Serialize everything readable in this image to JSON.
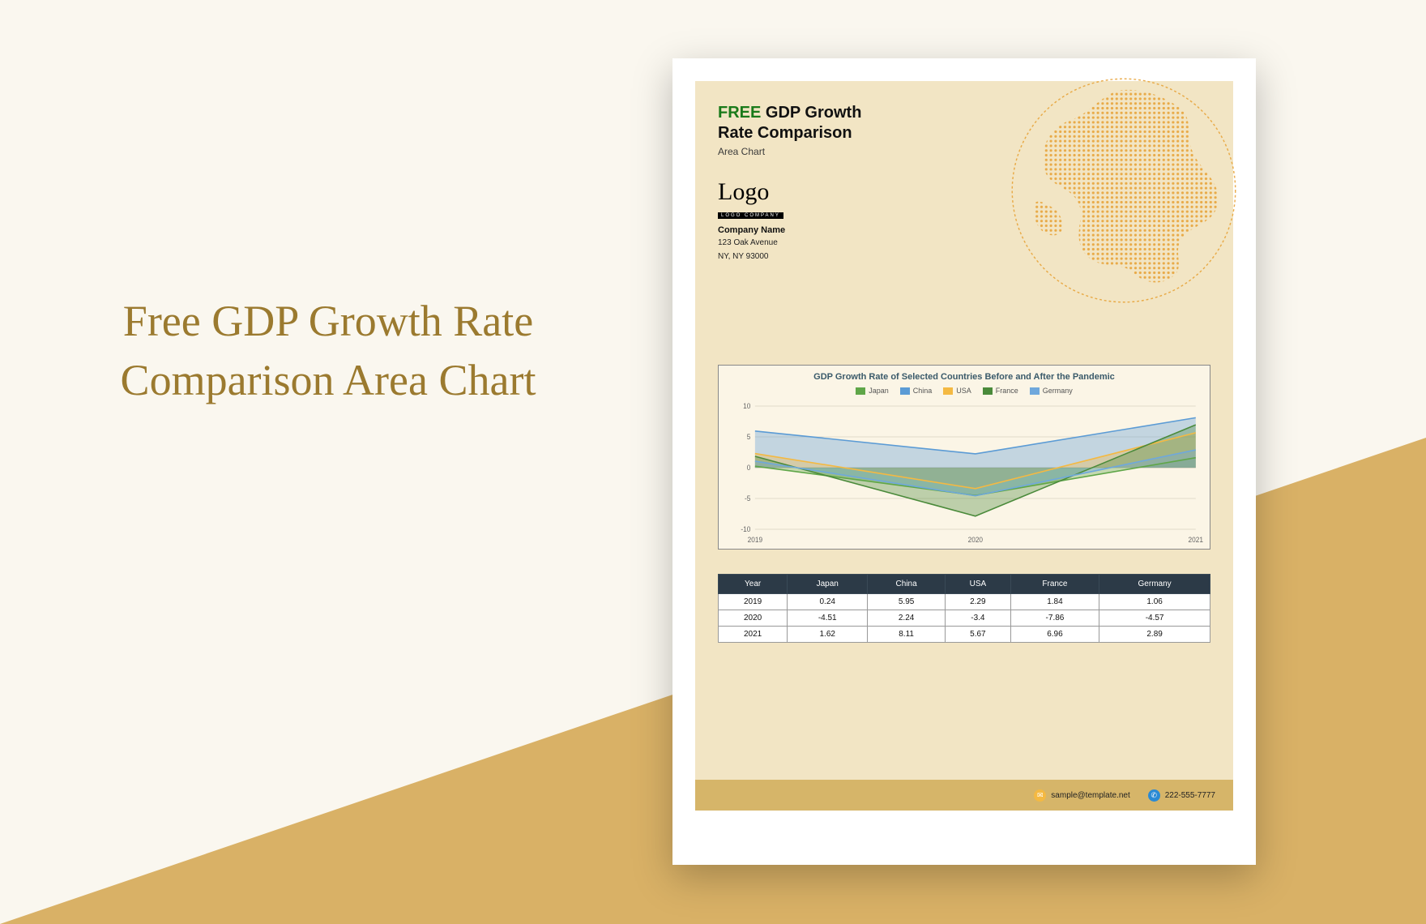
{
  "page": {
    "left_title": "Free GDP Growth Rate Comparison Area Chart",
    "background_color": "#faf7ef",
    "triangle_color": "#d9b166",
    "title_color": "#9b7a2f"
  },
  "doc": {
    "title_free": "FREE",
    "title_rest": " GDP Growth",
    "title_line2": "Rate Comparison",
    "subtitle": "Area Chart",
    "logo_word": "Logo",
    "logo_bar_text": "LOGO COMPANY",
    "company": "Company Name",
    "address_line1": "123 Oak Avenue",
    "address_line2": "NY, NY 93000",
    "inner_bg": "#f2e5c4",
    "globe_color": "#e8a43a"
  },
  "chart": {
    "title": "GDP Growth Rate of Selected Countries Before and After the Pandemic",
    "type": "area",
    "years": [
      "2019",
      "2020",
      "2021"
    ],
    "ylim": [
      -10,
      10
    ],
    "yticks": [
      -10,
      -5,
      0,
      5,
      10
    ],
    "series": [
      {
        "name": "Japan",
        "color": "#5fa648",
        "values": [
          0.24,
          -4.51,
          1.62
        ]
      },
      {
        "name": "China",
        "color": "#5b9bd5",
        "values": [
          5.95,
          2.24,
          8.11
        ]
      },
      {
        "name": "USA",
        "color": "#f4b942",
        "values": [
          2.29,
          -3.4,
          5.67
        ]
      },
      {
        "name": "France",
        "color": "#4a8a3a",
        "values": [
          1.84,
          -7.86,
          6.96
        ]
      },
      {
        "name": "Germany",
        "color": "#6fa8dc",
        "values": [
          1.06,
          -4.57,
          2.89
        ]
      }
    ],
    "grid_color": "#c7c1ad",
    "box_bg": "#fbf5e6",
    "fill_opacity": 0.35
  },
  "table": {
    "columns": [
      "Year",
      "Japan",
      "China",
      "USA",
      "France",
      "Germany"
    ],
    "rows": [
      [
        "2019",
        "0.24",
        "5.95",
        "2.29",
        "1.84",
        "1.06"
      ],
      [
        "2020",
        "-4.51",
        "2.24",
        "-3.4",
        "-7.86",
        "-4.57"
      ],
      [
        "2021",
        "1.62",
        "8.11",
        "5.67",
        "6.96",
        "2.89"
      ]
    ],
    "header_bg": "#2c3a47",
    "header_fg": "#ffffff",
    "cell_bg": "#ffffff"
  },
  "footer": {
    "bar_color": "#d6b569",
    "email": "sample@template.net",
    "phone": "222-555-7777",
    "email_icon_bg": "#f4b942",
    "phone_icon_bg": "#2a8ad4"
  }
}
